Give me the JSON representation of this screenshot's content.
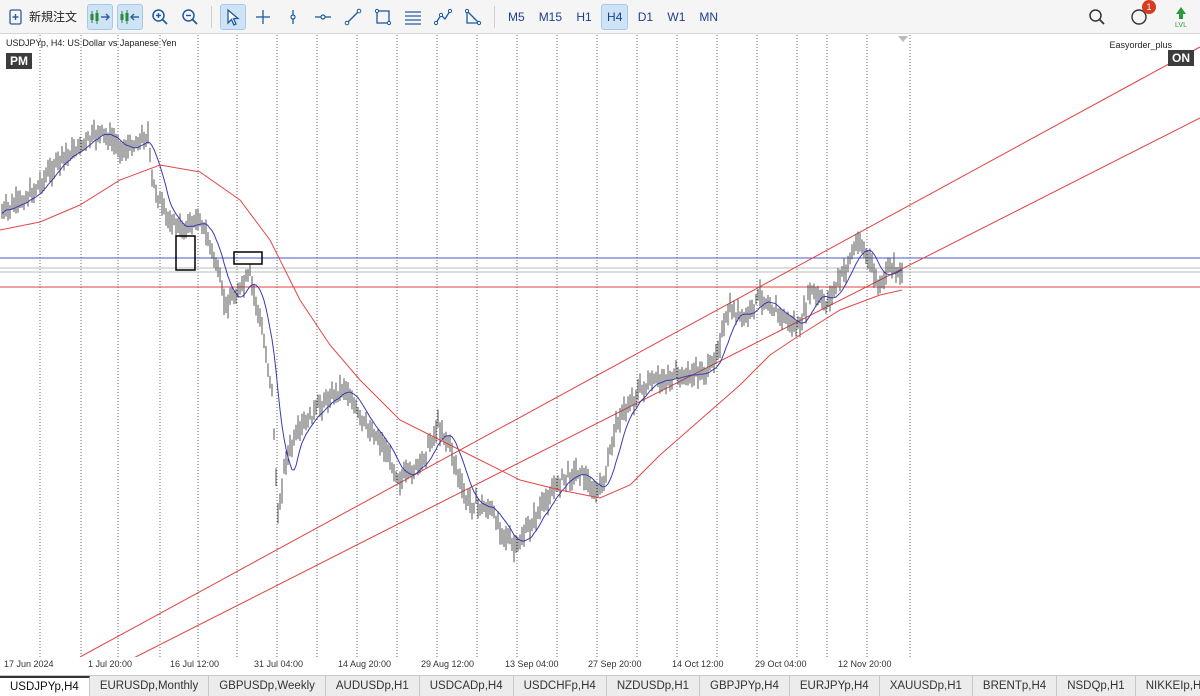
{
  "toolbar": {
    "new_order_label": "新規注文",
    "timeframes": [
      "M5",
      "M15",
      "H1",
      "H4",
      "D1",
      "W1",
      "MN"
    ],
    "active_timeframe": "H4",
    "notification_count": "1"
  },
  "chart": {
    "title": "USDJPYp, H4:  US Dollar vs Japanese Yen",
    "session_badge": "PM",
    "ea_name": "Easyorder_plus",
    "ea_status": "ON",
    "colors": {
      "bar": "#555555",
      "ma_fast": "#3a3ab0",
      "ma_slow": "#e04848",
      "h_blue": "#4a5ad0",
      "h_red": "#e04040",
      "h_grey": "#bbbbbb",
      "channel": "#e04040"
    },
    "x_labels": [
      "17 Jun 2024",
      "1 Jul 20:00",
      "16 Jul 12:00",
      "31 Jul 04:00",
      "14 Aug 20:00",
      "29 Aug 12:00",
      "13 Sep 04:00",
      "27 Sep 20:00",
      "14 Oct 12:00",
      "29 Oct 04:00",
      "12 Nov 20:00"
    ]
  },
  "tabs": [
    "USDJPYp,H4",
    "EURUSDp,Monthly",
    "GBPUSDp,Weekly",
    "AUDUSDp,H1",
    "USDCADp,H4",
    "USDCHFp,H4",
    "NZDUSDp,H1",
    "GBPJPYp,H4",
    "EURJPYp,H4",
    "XAUUSDp,H1",
    "BRENTp,H4",
    "NSDQp,H1",
    "NIKKEIp,H1"
  ],
  "active_tab": "USDJPYp,H4"
}
